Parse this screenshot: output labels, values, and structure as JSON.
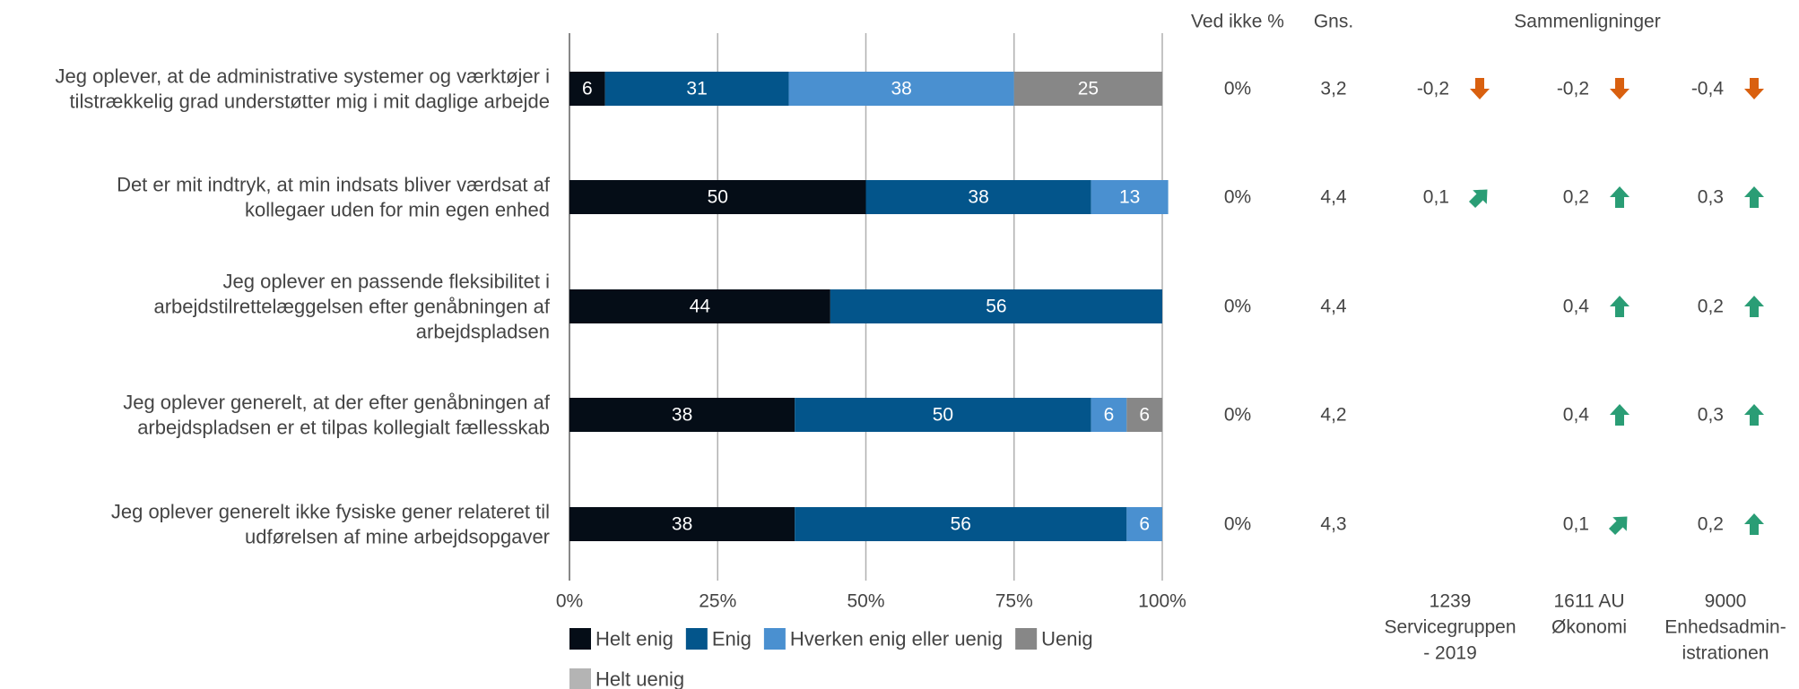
{
  "chart_data": {
    "type": "bar",
    "orientation": "horizontal",
    "stacked": true,
    "questions": [
      [
        "Jeg oplever, at de administrative systemer og værktøjer i",
        "tilstrækkelig grad understøtter mig i mit daglige arbejde"
      ],
      [
        "Det er mit indtryk, at min indsats bliver værdsat af",
        "kollegaer uden for min egen enhed"
      ],
      [
        "Jeg oplever en passende fleksibilitet i",
        "arbejdstilrettelæggelsen efter genåbningen af",
        "arbejdspladsen"
      ],
      [
        "Jeg oplever generelt, at der efter genåbningen af",
        "arbejdspladsen er et tilpas kollegialt fællesskab"
      ],
      [
        "Jeg oplever generelt ikke fysiske gener relateret til",
        "udførelsen af mine arbejdsopgaver"
      ]
    ],
    "series": [
      {
        "name": "Helt enig",
        "color": "#050d17",
        "values": [
          6,
          50,
          44,
          38,
          38
        ]
      },
      {
        "name": "Enig",
        "color": "#03558b",
        "values": [
          31,
          38,
          56,
          50,
          56
        ]
      },
      {
        "name": "Hverken enig eller uenig",
        "color": "#4a90d0",
        "values": [
          38,
          13,
          0,
          6,
          6
        ]
      },
      {
        "name": "Uenig",
        "color": "#878787",
        "values": [
          25,
          0,
          0,
          6,
          0
        ]
      },
      {
        "name": "Helt uenig",
        "color": "#b4b4b4",
        "values": [
          0,
          0,
          0,
          0,
          0
        ]
      }
    ],
    "xlim": [
      0,
      100
    ],
    "x_ticks": [
      "0%",
      "25%",
      "50%",
      "75%",
      "100%"
    ],
    "grid": true,
    "legend_position": "bottom",
    "columns": {
      "ved_ikke_header": "Ved ikke %",
      "gns_header": "Gns.",
      "comparisons_header": "Sammenligninger",
      "ved_ikke": [
        "0%",
        "0%",
        "0%",
        "0%",
        "0%"
      ],
      "gns": [
        "3,2",
        "4,4",
        "4,4",
        "4,2",
        "4,3"
      ]
    },
    "comparisons": [
      {
        "label": [
          "1239",
          "Servicegruppen",
          "- 2019"
        ],
        "values": [
          "-0,2",
          "0,1",
          "",
          "",
          ""
        ],
        "arrows": [
          "down",
          "up-right",
          "",
          "",
          ""
        ]
      },
      {
        "label": [
          "1611 AU",
          "Økonomi"
        ],
        "values": [
          "-0,2",
          "0,2",
          "0,4",
          "0,4",
          "0,1"
        ],
        "arrows": [
          "down",
          "up",
          "up",
          "up",
          "up-right"
        ]
      },
      {
        "label": [
          "9000",
          "Enhedsadmin-",
          "istrationen"
        ],
        "values": [
          "-0,4",
          "0,3",
          "0,2",
          "0,3",
          "0,2"
        ],
        "arrows": [
          "down",
          "up",
          "up",
          "up",
          "up"
        ]
      }
    ],
    "colors": {
      "arrow_up": "#2a9d75",
      "arrow_down": "#d9600f",
      "text": "#444444",
      "grid": "#b0b0b0"
    }
  }
}
